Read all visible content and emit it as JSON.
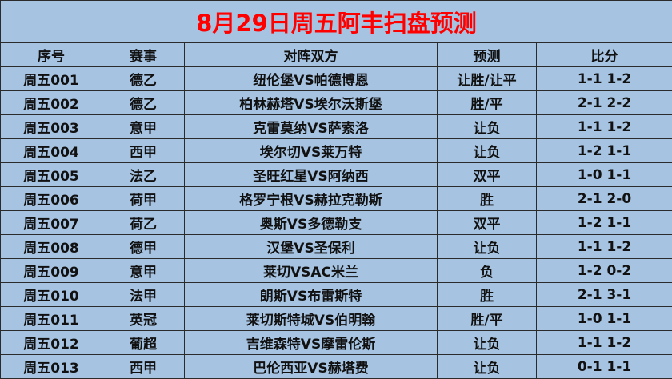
{
  "title": "8月29日周五阿丰扫盘预测",
  "colors": {
    "background": "#a6c4e2",
    "title": "#ff0000",
    "text": "#111111"
  },
  "headers": [
    "序号",
    "赛事",
    "对阵双方",
    "预测",
    "比分"
  ],
  "rows": [
    {
      "id": "周五001",
      "league": "德乙",
      "match": "纽伦堡VS帕德博恩",
      "pick": "让胜/让平",
      "score": "1-1 1-2"
    },
    {
      "id": "周五002",
      "league": "德乙",
      "match": "柏林赫塔VS埃尔沃斯堡",
      "pick": "胜/平",
      "score": "2-1 2-2"
    },
    {
      "id": "周五003",
      "league": "意甲",
      "match": "克雷莫纳VS萨索洛",
      "pick": "让负",
      "score": "1-1 1-2"
    },
    {
      "id": "周五004",
      "league": "西甲",
      "match": "埃尔切VS莱万特",
      "pick": "让负",
      "score": "1-2 1-1"
    },
    {
      "id": "周五005",
      "league": "法乙",
      "match": "圣旺红星VS阿纳西",
      "pick": "双平",
      "score": "1-0 1-1"
    },
    {
      "id": "周五006",
      "league": "荷甲",
      "match": "格罗宁根VS赫拉克勒斯",
      "pick": "胜",
      "score": "2-1 2-0"
    },
    {
      "id": "周五007",
      "league": "荷乙",
      "match": "奥斯VS多德勒支",
      "pick": "双平",
      "score": "1-2 1-1"
    },
    {
      "id": "周五008",
      "league": "德甲",
      "match": "汉堡VS圣保利",
      "pick": "让负",
      "score": "1-1 1-2"
    },
    {
      "id": "周五009",
      "league": "意甲",
      "match": "莱切VSAC米兰",
      "pick": "负",
      "score": "1-2 0-2"
    },
    {
      "id": "周五010",
      "league": "法甲",
      "match": "朗斯VS布雷斯特",
      "pick": "胜",
      "score": "2-1 3-1"
    },
    {
      "id": "周五011",
      "league": "英冠",
      "match": "莱切斯特城VS伯明翰",
      "pick": "胜/平",
      "score": "1-0 1-1"
    },
    {
      "id": "周五012",
      "league": "葡超",
      "match": "吉维森特VS摩雷伦斯",
      "pick": "让负",
      "score": "1-1 1-2"
    },
    {
      "id": "周五013",
      "league": "西甲",
      "match": "巴伦西亚VS赫塔费",
      "pick": "让负",
      "score": "0-1 1-1"
    }
  ]
}
